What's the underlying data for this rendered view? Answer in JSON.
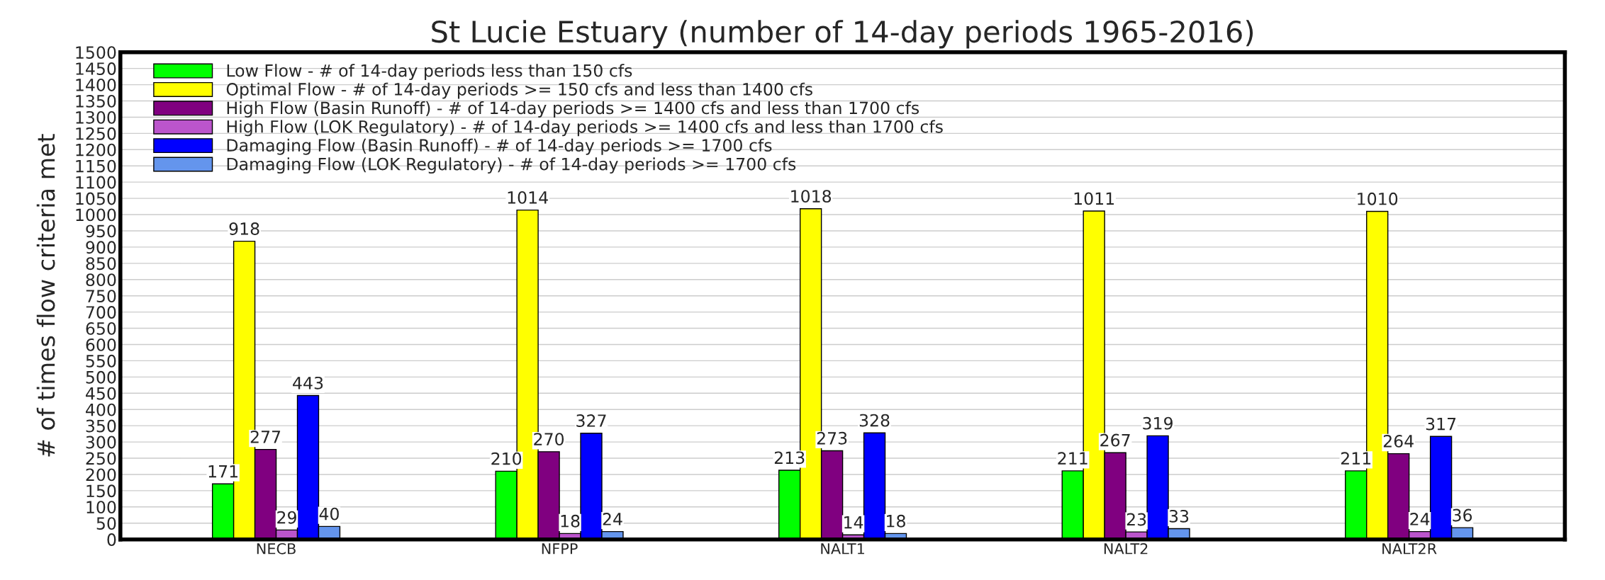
{
  "chart_data": {
    "type": "bar",
    "title": "St Lucie Estuary (number of 14-day periods 1965-2016)",
    "ylabel": "# of times flow criteria met",
    "categories": [
      "NECB",
      "NFPP",
      "NALT1",
      "NALT2",
      "NALT2R"
    ],
    "series": [
      {
        "name": "Low Flow - # of 14-day periods less than 150 cfs",
        "color": "#00ff00",
        "values": [
          171,
          210,
          213,
          211,
          211
        ]
      },
      {
        "name": "Optimal Flow - # of 14-day periods >= 150 cfs and less than 1400 cfs",
        "color": "#ffff00",
        "values": [
          918,
          1014,
          1018,
          1011,
          1010
        ]
      },
      {
        "name": "High Flow (Basin Runoff) - # of 14-day periods >= 1400 cfs and less than 1700 cfs",
        "color": "#800080",
        "values": [
          277,
          270,
          273,
          267,
          264
        ]
      },
      {
        "name": "High Flow (LOK Regulatory) - # of 14-day periods >= 1400 cfs and less than 1700 cfs",
        "color": "#bb55cc",
        "values": [
          29,
          18,
          14,
          23,
          24
        ]
      },
      {
        "name": "Damaging Flow (Basin Runoff) - # of 14-day periods >= 1700 cfs",
        "color": "#0000ff",
        "values": [
          443,
          327,
          328,
          319,
          317
        ]
      },
      {
        "name": "Damaging Flow (LOK Regulatory) - # of 14-day periods >= 1700 cfs",
        "color": "#6495ed",
        "values": [
          40,
          24,
          18,
          33,
          36
        ]
      }
    ],
    "ylim": [
      0,
      1500
    ],
    "yticks": [
      0,
      50,
      100,
      150,
      200,
      250,
      300,
      350,
      400,
      450,
      500,
      550,
      600,
      650,
      700,
      750,
      800,
      850,
      900,
      950,
      1000,
      1050,
      1100,
      1150,
      1200,
      1250,
      1300,
      1350,
      1400,
      1450,
      1500
    ],
    "grid": "y",
    "legend": "top left",
    "data_labels": true
  }
}
